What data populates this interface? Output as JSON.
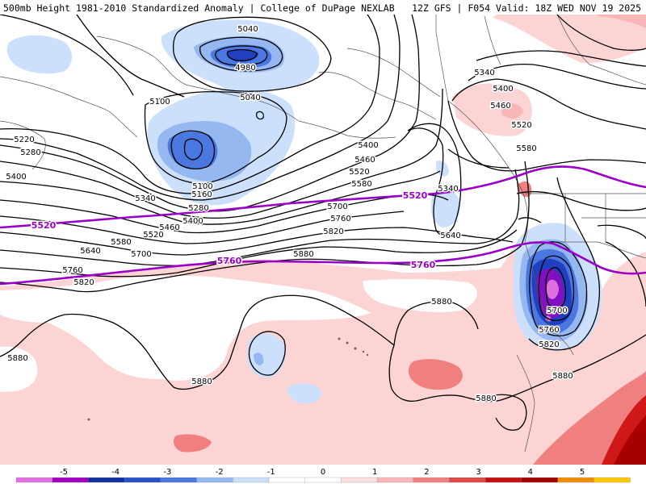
{
  "header": {
    "title": "500mb Height 1981-2010 Standardized Anomaly | College of DuPage NEXLAB",
    "run_info": "12Z GFS | F054 Valid: 18Z WED NOV 19 2025"
  },
  "contour_labels": [
    {
      "text": "5040"
    },
    {
      "text": "4980"
    },
    {
      "text": "5100"
    },
    {
      "text": "5040"
    },
    {
      "text": "5220"
    },
    {
      "text": "5280"
    },
    {
      "text": "5400"
    },
    {
      "text": "5340"
    },
    {
      "text": "5100"
    },
    {
      "text": "5160"
    },
    {
      "text": "5280"
    },
    {
      "text": "5400"
    },
    {
      "text": "5460"
    },
    {
      "text": "5520"
    },
    {
      "text": "5580"
    },
    {
      "text": "5640"
    },
    {
      "text": "5700"
    },
    {
      "text": "5760"
    },
    {
      "text": "5820"
    },
    {
      "text": "5400"
    },
    {
      "text": "5460"
    },
    {
      "text": "5520"
    },
    {
      "text": "5580"
    },
    {
      "text": "5700"
    },
    {
      "text": "5760"
    },
    {
      "text": "5820"
    },
    {
      "text": "5880"
    },
    {
      "text": "5340"
    },
    {
      "text": "5640"
    },
    {
      "text": "5340"
    },
    {
      "text": "5400"
    },
    {
      "text": "5460"
    },
    {
      "text": "5520"
    },
    {
      "text": "5580"
    },
    {
      "text": "5880"
    },
    {
      "text": "5880"
    },
    {
      "text": "5880"
    },
    {
      "text": "5880"
    },
    {
      "text": "5880"
    },
    {
      "text": "5700"
    },
    {
      "text": "5760"
    },
    {
      "text": "5820"
    },
    {
      "text": "5880"
    }
  ],
  "highlight_labels": [
    {
      "text": "5520"
    },
    {
      "text": "5520"
    },
    {
      "text": "5760"
    },
    {
      "text": "5760"
    }
  ],
  "colorbar": {
    "ticks": [
      "-5",
      "-4",
      "-3",
      "-2",
      "-1",
      "0",
      "1",
      "2",
      "3",
      "4",
      "5"
    ],
    "colors": [
      "#e070e0",
      "#a000c0",
      "#1030a0",
      "#2850c8",
      "#4a78e0",
      "#96b8f0",
      "#cce0fb",
      "#ffffff",
      "#ffffff",
      "#fde0e0",
      "#f8b6b6",
      "#f08080",
      "#e04848",
      "#c41010",
      "#a00000",
      "#f08c00",
      "#ffc800"
    ]
  },
  "colors": {
    "contour": "#000000",
    "highlight_contour": "#9a00c8",
    "neg1": "#cce0fb",
    "neg2": "#96b8f0",
    "neg3": "#4a78e0",
    "neg4": "#2040c0",
    "neg5": "#8010c0",
    "neg6": "#e070e0",
    "pos1": "#fcd4d4",
    "pos2": "#f08080",
    "pos3": "#d01818",
    "pos4": "#a80000"
  }
}
